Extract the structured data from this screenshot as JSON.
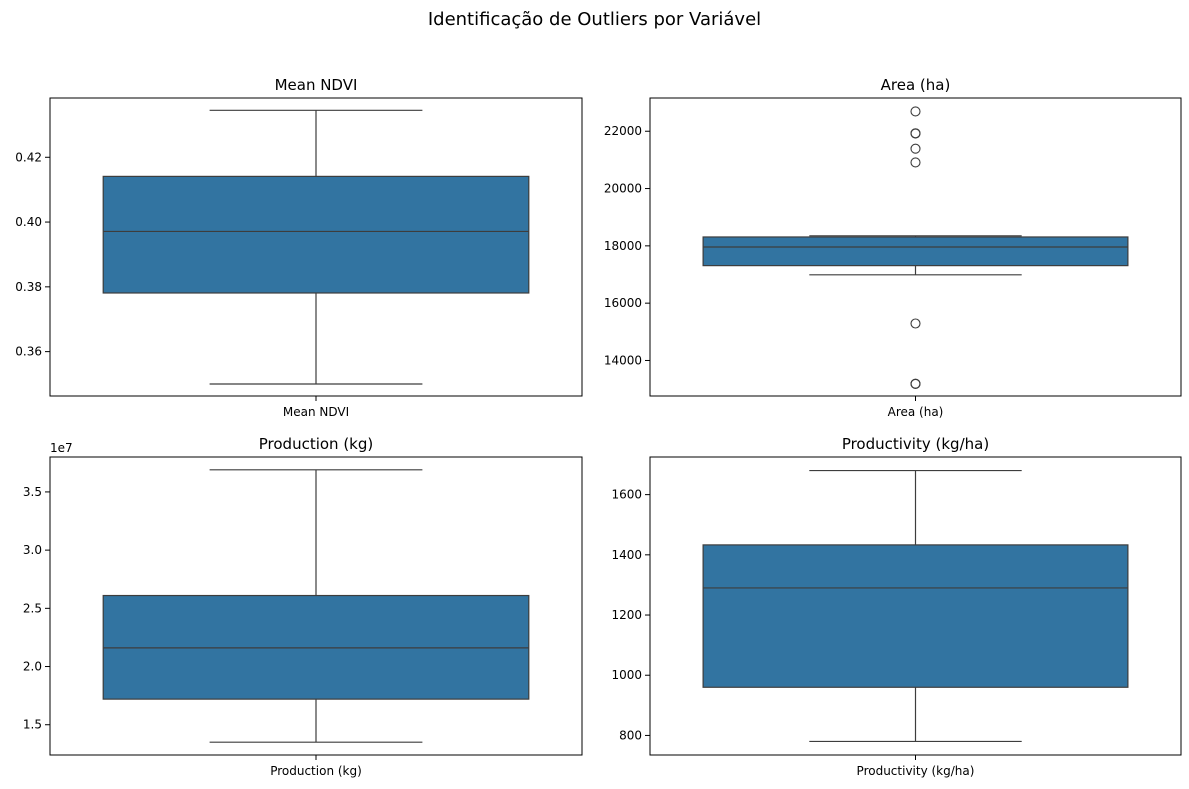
{
  "figure": {
    "title": "Identificação de Outliers por Variável"
  },
  "colors": {
    "box_fill": "#3274a1",
    "line": "#3d3d3d",
    "frame": "#000000"
  },
  "chart_data": [
    {
      "type": "box",
      "title": "Mean NDVI",
      "xlabel": "Mean NDVI",
      "ylim": [
        0.3463,
        0.4383
      ],
      "yticks": [
        0.36,
        0.38,
        0.4,
        0.42
      ],
      "ytick_labels": [
        "0.36",
        "0.38",
        "0.40",
        "0.42"
      ],
      "offset_label": "",
      "box": {
        "whisker_low": 0.35,
        "q1": 0.3781,
        "median": 0.3971,
        "q3": 0.4141,
        "whisker_high": 0.4345
      },
      "outliers": []
    },
    {
      "type": "box",
      "title": "Area (ha)",
      "xlabel": "Area (ha)",
      "ylim": [
        12760,
        23160
      ],
      "yticks": [
        14000,
        16000,
        18000,
        20000,
        22000
      ],
      "ytick_labels": [
        "14000",
        "16000",
        "18000",
        "20000",
        "22000"
      ],
      "offset_label": "",
      "box": {
        "whisker_low": 16990,
        "q1": 17310,
        "median": 17960,
        "q3": 18310,
        "whisker_high": 18350
      },
      "outliers": [
        13180,
        13190,
        15290,
        20910,
        21390,
        21920,
        21930,
        22690
      ]
    },
    {
      "type": "box",
      "title": "Production (kg)",
      "xlabel": "Production (kg)",
      "ylim": [
        12400000.0,
        38000000.0
      ],
      "yticks": [
        15000000.0,
        20000000.0,
        25000000.0,
        30000000.0,
        35000000.0
      ],
      "ytick_labels": [
        "1.5",
        "2.0",
        "2.5",
        "3.0",
        "3.5"
      ],
      "offset_label": "1e7",
      "box": {
        "whisker_low": 13500000.0,
        "q1": 17200000.0,
        "median": 21600000.0,
        "q3": 26100000.0,
        "whisker_high": 36900000.0
      },
      "outliers": []
    },
    {
      "type": "box",
      "title": "Productivity (kg/ha)",
      "xlabel": "Productivity (kg/ha)",
      "ylim": [
        735,
        1725
      ],
      "yticks": [
        800,
        1000,
        1200,
        1400,
        1600
      ],
      "ytick_labels": [
        "800",
        "1000",
        "1200",
        "1400",
        "1600"
      ],
      "offset_label": "",
      "box": {
        "whisker_low": 780,
        "q1": 960,
        "median": 1290,
        "q3": 1433,
        "whisker_high": 1680
      },
      "outliers": []
    }
  ]
}
